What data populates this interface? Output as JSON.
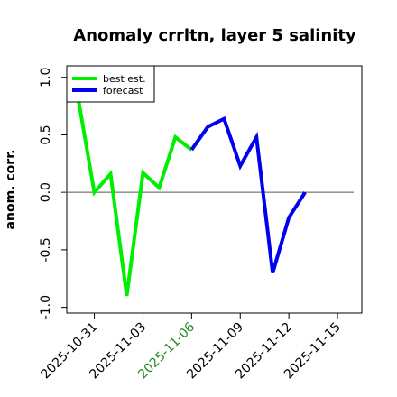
{
  "chart_data": {
    "type": "line",
    "title": "Anomaly crrltn, layer 5 salinity",
    "ylabel": "anom. corr.",
    "xlabel": "",
    "ylim": [
      -1.05,
      1.1
    ],
    "yticks": [
      -1.0,
      -0.5,
      0.0,
      0.5,
      1.0
    ],
    "ytick_labels": [
      "-1.0",
      "-0.5",
      "0.0",
      "0.5",
      "1.0"
    ],
    "xlim": [
      -0.85,
      8.25
    ],
    "xticks": [
      {
        "x": 0,
        "label": "2025-10-31",
        "color": "#000000"
      },
      {
        "x": 1.5,
        "label": "2025-11-03",
        "color": "#000000"
      },
      {
        "x": 3,
        "label": "2025-11-06",
        "color": "#228B22"
      },
      {
        "x": 4.5,
        "label": "2025-11-09",
        "color": "#000000"
      },
      {
        "x": 6,
        "label": "2025-11-12",
        "color": "#000000"
      },
      {
        "x": 7.5,
        "label": "2025-11-15",
        "color": "#000000"
      }
    ],
    "reference_line": {
      "y": 0.0,
      "x_from": -1,
      "x_to": 8
    },
    "series": [
      {
        "name": "best est.",
        "color": "#00ee00",
        "x": [
          -0.5,
          0,
          0.5,
          1,
          1.5,
          2,
          2.5,
          3
        ],
        "y": [
          0.82,
          0.0,
          0.16,
          -0.9,
          0.17,
          0.04,
          0.48,
          0.37
        ]
      },
      {
        "name": "forecast",
        "color": "#0000ee",
        "x": [
          3,
          3.5,
          4,
          4.5,
          5,
          5.5,
          6,
          6.5
        ],
        "y": [
          0.37,
          0.57,
          0.64,
          0.23,
          0.48,
          -0.7,
          -0.22,
          0.0
        ]
      }
    ],
    "legend": {
      "placement": "top-left"
    }
  }
}
